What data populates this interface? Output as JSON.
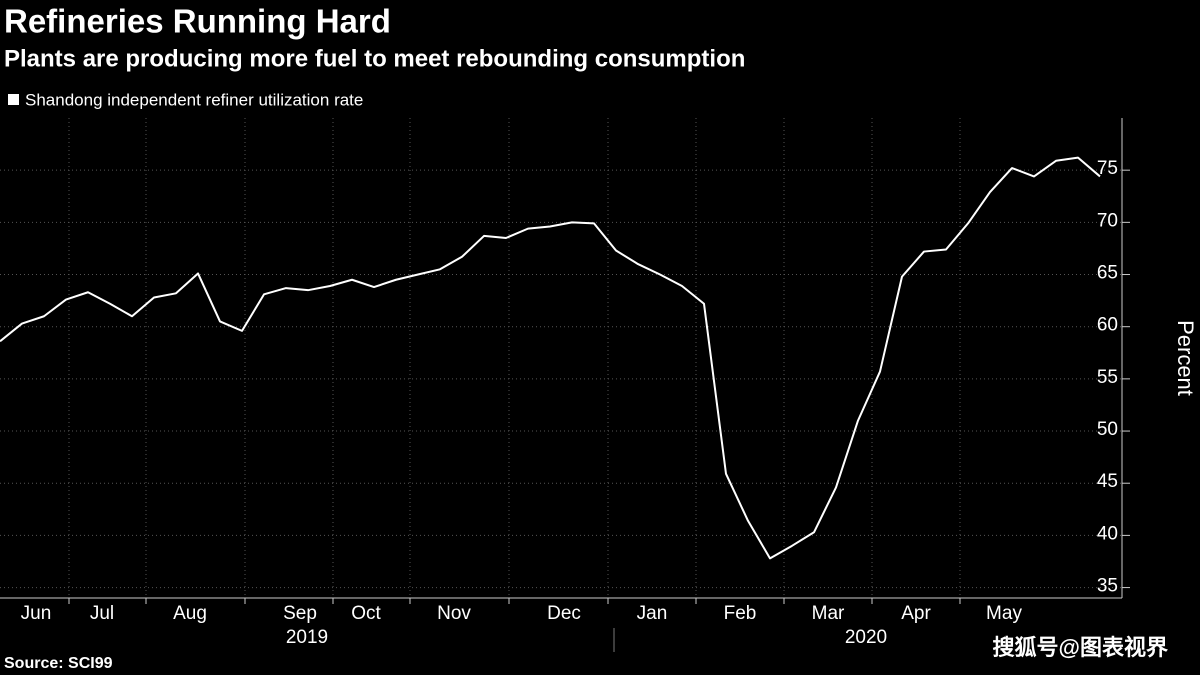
{
  "chart_data": {
    "type": "line",
    "title": "Refineries Running Hard",
    "subtitle": "Plants are producing more fuel to meet rebounding consumption",
    "source": "Source: SCI99",
    "watermark": "搜狐号@图表视界",
    "y_label": "Percent",
    "categories": [
      null,
      null,
      "Jun",
      null,
      null,
      "Jul",
      null,
      null,
      null,
      "Aug",
      null,
      null,
      null,
      null,
      "Sep",
      null,
      null,
      "Oct",
      null,
      null,
      null,
      "Nov",
      null,
      null,
      null,
      null,
      "Dec",
      null,
      null,
      null,
      "Jan",
      null,
      null,
      null,
      "Feb",
      null,
      null,
      null,
      "Mar",
      null,
      null,
      null,
      "Apr",
      null,
      null,
      null,
      "May",
      null,
      null,
      null,
      null
    ],
    "year_labels": [
      "2019",
      "2020"
    ],
    "series": [
      {
        "name": "Shandong independent refiner utilization rate",
        "color": "#ffffff",
        "values": [
          58.6,
          60.3,
          61.0,
          62.6,
          63.3,
          62.2,
          61.0,
          62.8,
          63.2,
          65.1,
          60.5,
          59.6,
          63.1,
          63.7,
          63.5,
          63.9,
          64.5,
          63.8,
          64.5,
          65.0,
          65.5,
          66.7,
          68.7,
          68.5,
          69.4,
          69.6,
          70.0,
          69.9,
          67.3,
          66.0,
          65.0,
          63.9,
          62.2,
          45.9,
          41.4,
          37.8,
          39.0,
          40.3,
          44.6,
          51.0,
          55.7,
          64.8,
          67.2,
          67.4,
          69.9,
          72.9,
          75.2,
          74.4,
          75.9,
          76.2,
          74.4
        ]
      }
    ],
    "ylim": [
      34,
      80
    ],
    "yticks": [
      35,
      40,
      45,
      50,
      55,
      60,
      65,
      70,
      75
    ],
    "grid": true
  }
}
